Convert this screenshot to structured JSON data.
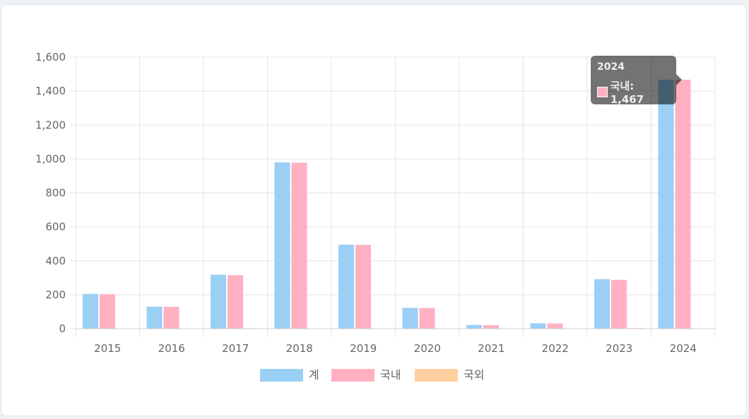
{
  "chart_data": {
    "type": "bar",
    "categories": [
      "2015",
      "2016",
      "2017",
      "2018",
      "2019",
      "2020",
      "2021",
      "2022",
      "2023",
      "2024"
    ],
    "series": [
      {
        "name": "계",
        "color": "#9ad0f5",
        "values": [
          205,
          130,
          318,
          980,
          495,
          123,
          22,
          32,
          292,
          1467
        ]
      },
      {
        "name": "국내",
        "color": "#ffb1c1",
        "values": [
          203,
          129,
          315,
          978,
          494,
          122,
          21,
          31,
          288,
          1467
        ]
      },
      {
        "name": "국외",
        "color": "#ffcf9f",
        "values": [
          2,
          1,
          3,
          2,
          1,
          1,
          1,
          1,
          4,
          0
        ]
      }
    ],
    "ylim": [
      0,
      1600
    ],
    "yticks": [
      "0",
      "200",
      "400",
      "600",
      "800",
      "1,000",
      "1,200",
      "1,400",
      "1,600"
    ],
    "ytick_values": [
      0,
      200,
      400,
      600,
      800,
      1000,
      1200,
      1400,
      1600
    ],
    "grid": true,
    "legend": "bottom",
    "tooltip": {
      "title": "2024",
      "label": "국내: 1,467"
    }
  }
}
